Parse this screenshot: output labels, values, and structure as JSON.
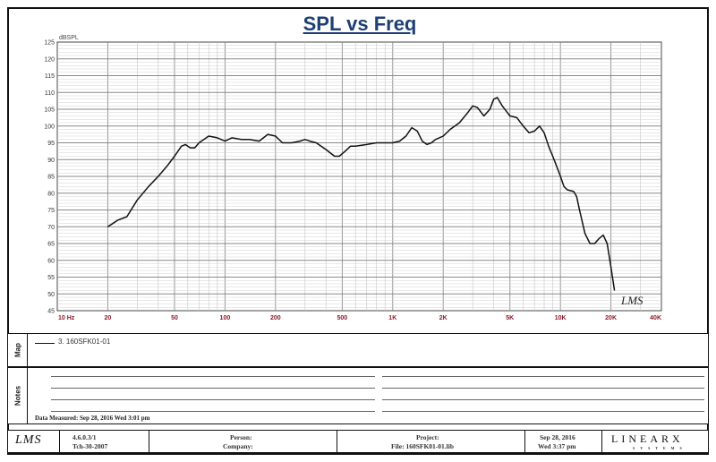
{
  "chart_data": {
    "type": "line",
    "title": "SPL vs Freq",
    "ylabel": "dBSPL",
    "x_scale": "log",
    "xlim": [
      10,
      40000
    ],
    "ylim": [
      45,
      125
    ],
    "grid": true,
    "y_ticks": [
      "45",
      "50",
      "55",
      "60",
      "65",
      "70",
      "75",
      "80",
      "85",
      "90",
      "95",
      "100",
      "105",
      "110",
      "115",
      "120",
      "125"
    ],
    "x_ticks": [
      {
        "label": "10  Hz",
        "value": 10
      },
      {
        "label": "20",
        "value": 20
      },
      {
        "label": "50",
        "value": 50
      },
      {
        "label": "100",
        "value": 100
      },
      {
        "label": "200",
        "value": 200
      },
      {
        "label": "500",
        "value": 500
      },
      {
        "label": "1K",
        "value": 1000
      },
      {
        "label": "2K",
        "value": 2000
      },
      {
        "label": "5K",
        "value": 5000
      },
      {
        "label": "10K",
        "value": 10000
      },
      {
        "label": "20K",
        "value": 20000
      },
      {
        "label": "40K",
        "value": 40000
      }
    ],
    "series": [
      {
        "color": "#111111",
        "points": [
          [
            20,
            70
          ],
          [
            23,
            72
          ],
          [
            26,
            73
          ],
          [
            30,
            78
          ],
          [
            35,
            82
          ],
          [
            40,
            85
          ],
          [
            45,
            88
          ],
          [
            50,
            91
          ],
          [
            55,
            94
          ],
          [
            58,
            94.5
          ],
          [
            62,
            93.5
          ],
          [
            66,
            93.5
          ],
          [
            70,
            95
          ],
          [
            80,
            97
          ],
          [
            90,
            96.5
          ],
          [
            100,
            95.5
          ],
          [
            110,
            96.5
          ],
          [
            125,
            96
          ],
          [
            140,
            96
          ],
          [
            160,
            95.5
          ],
          [
            180,
            97.5
          ],
          [
            200,
            97
          ],
          [
            220,
            95
          ],
          [
            250,
            95
          ],
          [
            280,
            95.5
          ],
          [
            300,
            96
          ],
          [
            320,
            95.5
          ],
          [
            350,
            95
          ],
          [
            400,
            93
          ],
          [
            450,
            91
          ],
          [
            480,
            91
          ],
          [
            520,
            92.5
          ],
          [
            560,
            94
          ],
          [
            600,
            94
          ],
          [
            700,
            94.5
          ],
          [
            800,
            95
          ],
          [
            900,
            95
          ],
          [
            1000,
            95
          ],
          [
            1100,
            95.5
          ],
          [
            1200,
            97
          ],
          [
            1300,
            99.5
          ],
          [
            1400,
            98.5
          ],
          [
            1500,
            95.5
          ],
          [
            1600,
            94.5
          ],
          [
            1700,
            95
          ],
          [
            1800,
            96
          ],
          [
            2000,
            97
          ],
          [
            2200,
            99
          ],
          [
            2500,
            101
          ],
          [
            2800,
            104
          ],
          [
            3000,
            106
          ],
          [
            3200,
            105.5
          ],
          [
            3500,
            103
          ],
          [
            3800,
            105
          ],
          [
            4000,
            108
          ],
          [
            4200,
            108.5
          ],
          [
            4500,
            106
          ],
          [
            5000,
            103
          ],
          [
            5500,
            102.5
          ],
          [
            6000,
            100
          ],
          [
            6500,
            98
          ],
          [
            7000,
            98.5
          ],
          [
            7500,
            100
          ],
          [
            8000,
            98
          ],
          [
            8500,
            94
          ],
          [
            9000,
            91
          ],
          [
            9500,
            88
          ],
          [
            10000,
            85
          ],
          [
            10500,
            82
          ],
          [
            11000,
            81
          ],
          [
            12000,
            80.5
          ],
          [
            12500,
            79
          ],
          [
            13000,
            75
          ],
          [
            14000,
            68
          ],
          [
            15000,
            65
          ],
          [
            16000,
            65
          ],
          [
            17000,
            66.5
          ],
          [
            18000,
            67.5
          ],
          [
            19000,
            65
          ],
          [
            20000,
            58
          ],
          [
            21000,
            51
          ]
        ]
      }
    ],
    "legend": [
      "3. 160SFK01-01"
    ]
  },
  "watermark": "LMS",
  "panels": {
    "map_label": "Map",
    "notes_label": "Notes",
    "measured": "Data Measured: Sep 28, 2016  Wed  3:01 pm"
  },
  "footer": {
    "logo": "LMS",
    "version": "4.6.0.3/1",
    "build": "Tch-30-2007",
    "person": "Person:",
    "company": "Company:",
    "project": "Project:",
    "file": "File: 160SFK01-01.lib",
    "date": "Sep 28, 2016",
    "time": "Wed  3:37 pm",
    "brand": "LINEARX",
    "brand_sub": "SYSTEMS"
  }
}
